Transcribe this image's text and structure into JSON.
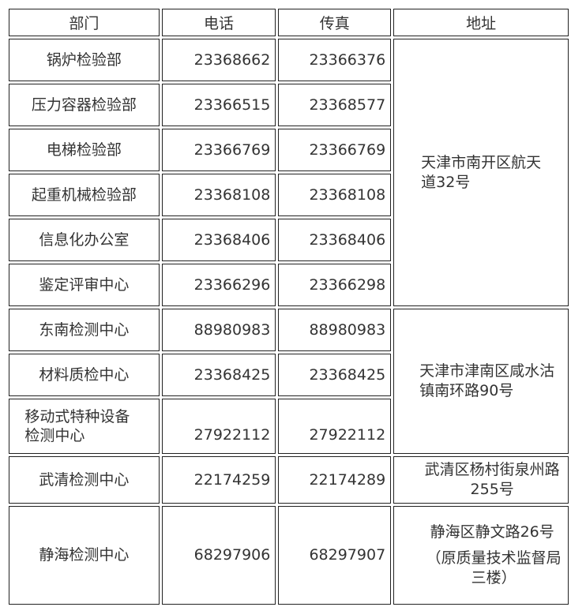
{
  "headers": [
    "部门",
    "电话",
    "传真",
    "地址"
  ],
  "rows": [
    {
      "dept": "锅炉检验部",
      "phone": "23368662",
      "fax": "23366376"
    },
    {
      "dept": "压力容器检验部",
      "phone": "23366515",
      "fax": "23368577"
    },
    {
      "dept": "电梯检验部",
      "phone": "23366769",
      "fax": "23366769"
    },
    {
      "dept": "起重机械检验部",
      "phone": "23368108",
      "fax": "23368108"
    },
    {
      "dept": "信息化办公室",
      "phone": "23368406",
      "fax": "23368406"
    },
    {
      "dept": "鉴定评审中心",
      "phone": "23366296",
      "fax": "23366298"
    },
    {
      "dept": "东南检测中心",
      "phone": "88980983",
      "fax": "88980983"
    },
    {
      "dept": "材料质检中心",
      "phone": "23368425",
      "fax": "23368425"
    },
    {
      "dept": "移动式特种设备检测中心",
      "phone": "27922112",
      "fax": "27922112"
    },
    {
      "dept": "武清检测中心",
      "phone": "22174259",
      "fax": "22174289"
    },
    {
      "dept": "静海检测中心",
      "phone": "68297906",
      "fax": "68297907"
    }
  ],
  "addresses": {
    "a1": "天津市南开区航天道32号",
    "a2": "天津市津南区咸水沽镇南环路90号",
    "a3": "武清区杨村街泉州路255号",
    "a4_line1": "静海区静文路26号",
    "a4_line2": "（原质量技术监督局三楼）"
  }
}
